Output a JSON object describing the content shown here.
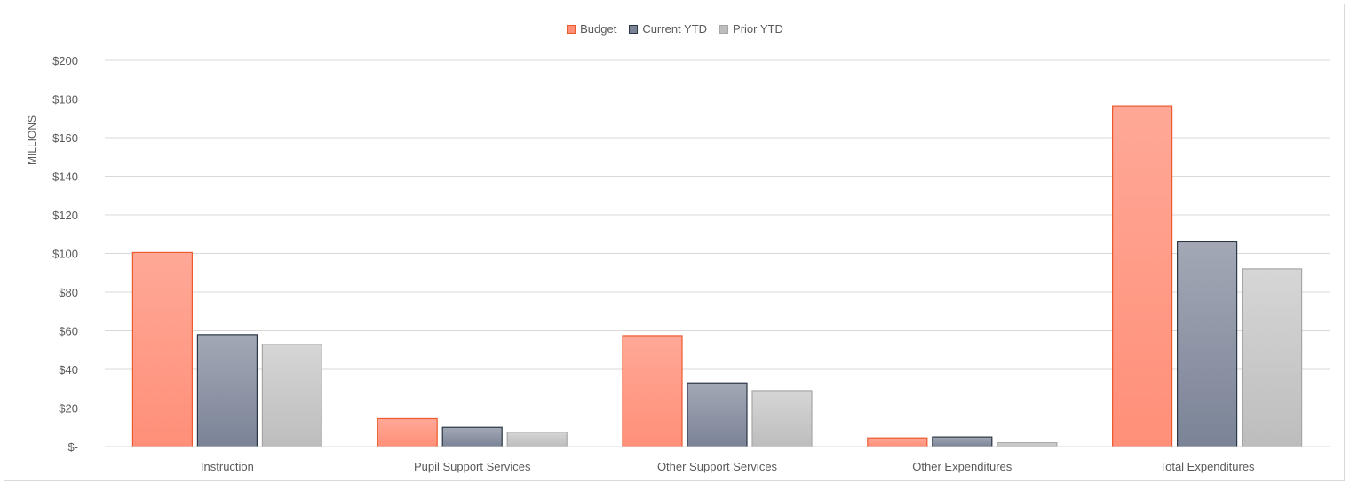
{
  "chart_data": {
    "type": "bar",
    "title": "",
    "xlabel": "",
    "ylabel": "MILLIONS",
    "ylim": [
      0,
      200
    ],
    "yticks": [
      0,
      20,
      40,
      60,
      80,
      100,
      120,
      140,
      160,
      180,
      200
    ],
    "ytick_labels": [
      "$-",
      "$20",
      "$40",
      "$60",
      "$80",
      "$100",
      "$120",
      "$140",
      "$160",
      "$180",
      "$200"
    ],
    "categories": [
      "Instruction",
      "Pupil Support Services",
      "Other Support Services",
      "Other Expenditures",
      "Total Expenditures"
    ],
    "series": [
      {
        "name": "Budget",
        "values": [
          100.5,
          14.5,
          57.5,
          4.5,
          176.5
        ],
        "color_top": "#ffa897",
        "color_bottom": "#ff8f78",
        "stroke": "#ec5a2d"
      },
      {
        "name": "Current YTD",
        "values": [
          58,
          10,
          33,
          5,
          106
        ],
        "color_top": "#a2a8b5",
        "color_bottom": "#7b8397",
        "stroke": "#2b3747"
      },
      {
        "name": "Prior YTD",
        "values": [
          53,
          7.5,
          29,
          2,
          92
        ],
        "color_top": "#d6d6d6",
        "color_bottom": "#bdbdbd",
        "stroke": "#a6a6a6"
      }
    ],
    "grid": true,
    "legend_position": "top-center"
  }
}
